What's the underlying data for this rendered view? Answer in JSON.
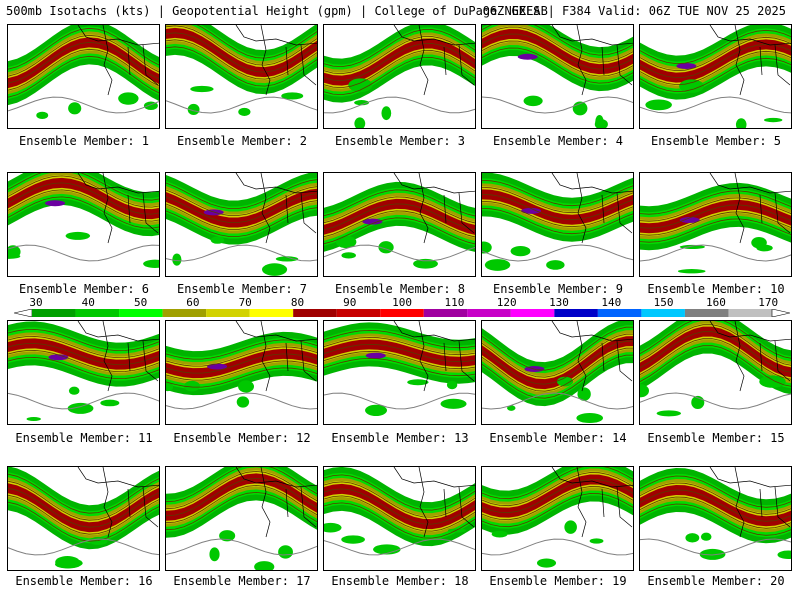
{
  "header": {
    "left_title": "500mb Isotachs (kts) | Geopotential Height (gpm) | College of DuPage NEXLAB",
    "right_title": "06Z GEFS | F384 Valid: 06Z TUE NOV 25 2025"
  },
  "colorbar": {
    "labels": [
      "30",
      "40",
      "50",
      "60",
      "70",
      "80",
      "90",
      "100",
      "110",
      "120",
      "130",
      "140",
      "150",
      "160",
      "170"
    ],
    "colors": [
      "#00a000",
      "#00c800",
      "#00ff00",
      "#a0a000",
      "#d2d200",
      "#ffff00",
      "#a00000",
      "#c80000",
      "#ff0000",
      "#a000a0",
      "#c800c8",
      "#ff00ff",
      "#0000c8",
      "#0064ff",
      "#00c8ff",
      "#808080",
      "#c0c0c0"
    ]
  },
  "panels": [
    {
      "label": "Ensemble Member: 1"
    },
    {
      "label": "Ensemble Member: 2"
    },
    {
      "label": "Ensemble Member: 3"
    },
    {
      "label": "Ensemble Member: 4"
    },
    {
      "label": "Ensemble Member: 5"
    },
    {
      "label": "Ensemble Member: 6"
    },
    {
      "label": "Ensemble Member: 7"
    },
    {
      "label": "Ensemble Member: 8"
    },
    {
      "label": "Ensemble Member: 9"
    },
    {
      "label": "Ensemble Member: 10"
    },
    {
      "label": "Ensemble Member: 11"
    },
    {
      "label": "Ensemble Member: 12"
    },
    {
      "label": "Ensemble Member: 13"
    },
    {
      "label": "Ensemble Member: 14"
    },
    {
      "label": "Ensemble Member: 15"
    },
    {
      "label": "Ensemble Member: 16"
    },
    {
      "label": "Ensemble Member: 17"
    },
    {
      "label": "Ensemble Member: 18"
    },
    {
      "label": "Ensemble Member: 19"
    },
    {
      "label": "Ensemble Member: 20"
    }
  ]
}
